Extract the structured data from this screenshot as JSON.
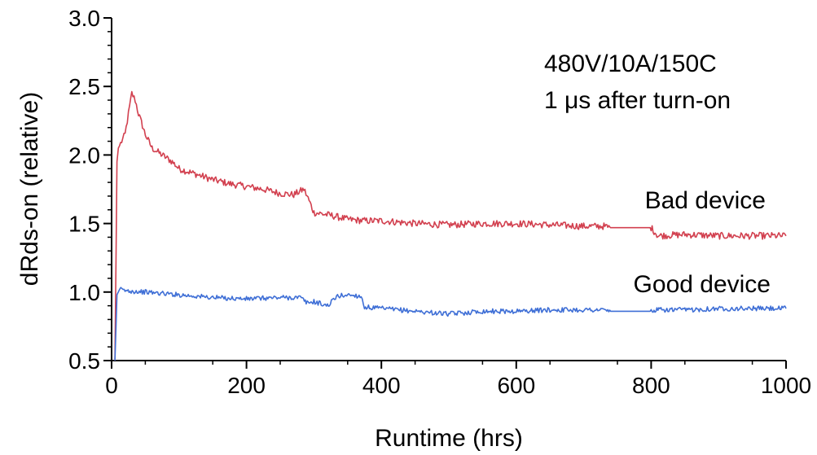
{
  "chart_data": {
    "type": "line",
    "title": "",
    "xlabel": "Runtime (hrs)",
    "ylabel": "dRds-on (relative)",
    "xlim": [
      0,
      1000
    ],
    "ylim": [
      0.5,
      3.0
    ],
    "x_ticks": [
      0,
      200,
      400,
      600,
      800,
      1000
    ],
    "x_tick_labels": [
      "0",
      "200",
      "400",
      "600",
      "800",
      "1000"
    ],
    "y_ticks": [
      0.5,
      1.0,
      1.5,
      2.0,
      2.5,
      3.0
    ],
    "y_tick_labels": [
      "0.5",
      "1.0",
      "1.5",
      "2.0",
      "2.5",
      "3.0"
    ],
    "grid": false,
    "annotations": {
      "conditions_line1": "480V/10A/150C",
      "conditions_line2": "1 μs after turn-on"
    },
    "series": [
      {
        "name": "Bad device",
        "color": "#d2404f",
        "points": [
          [
            5,
            0.5
          ],
          [
            8,
            1.95
          ],
          [
            10,
            2.05
          ],
          [
            15,
            2.1
          ],
          [
            20,
            2.15
          ],
          [
            25,
            2.3
          ],
          [
            30,
            2.45
          ],
          [
            35,
            2.4
          ],
          [
            40,
            2.3
          ],
          [
            50,
            2.15
          ],
          [
            60,
            2.05
          ],
          [
            75,
            2.0
          ],
          [
            90,
            1.95
          ],
          [
            100,
            1.9
          ],
          [
            125,
            1.86
          ],
          [
            150,
            1.82
          ],
          [
            175,
            1.79
          ],
          [
            200,
            1.77
          ],
          [
            225,
            1.75
          ],
          [
            250,
            1.72
          ],
          [
            270,
            1.71
          ],
          [
            285,
            1.75
          ],
          [
            290,
            1.7
          ],
          [
            300,
            1.58
          ],
          [
            325,
            1.56
          ],
          [
            350,
            1.53
          ],
          [
            375,
            1.52
          ],
          [
            400,
            1.52
          ],
          [
            450,
            1.5
          ],
          [
            500,
            1.49
          ],
          [
            550,
            1.5
          ],
          [
            600,
            1.5
          ],
          [
            650,
            1.49
          ],
          [
            700,
            1.48
          ],
          [
            730,
            1.48
          ],
          [
            740,
            1.47
          ],
          [
            800,
            1.47
          ],
          [
            810,
            1.41
          ],
          [
            850,
            1.42
          ],
          [
            900,
            1.41
          ],
          [
            950,
            1.41
          ],
          [
            1000,
            1.41
          ]
        ]
      },
      {
        "name": "Good device",
        "color": "#3f6fd6",
        "points": [
          [
            5,
            0.5
          ],
          [
            8,
            0.98
          ],
          [
            12,
            1.02
          ],
          [
            20,
            1.01
          ],
          [
            50,
            1.0
          ],
          [
            100,
            0.98
          ],
          [
            150,
            0.96
          ],
          [
            200,
            0.95
          ],
          [
            250,
            0.96
          ],
          [
            280,
            0.96
          ],
          [
            290,
            0.92
          ],
          [
            300,
            0.93
          ],
          [
            320,
            0.9
          ],
          [
            335,
            0.97
          ],
          [
            350,
            0.98
          ],
          [
            370,
            0.97
          ],
          [
            375,
            0.89
          ],
          [
            400,
            0.88
          ],
          [
            450,
            0.86
          ],
          [
            500,
            0.84
          ],
          [
            550,
            0.86
          ],
          [
            600,
            0.86
          ],
          [
            650,
            0.87
          ],
          [
            700,
            0.87
          ],
          [
            730,
            0.87
          ],
          [
            740,
            0.86
          ],
          [
            800,
            0.86
          ],
          [
            810,
            0.87
          ],
          [
            850,
            0.87
          ],
          [
            900,
            0.88
          ],
          [
            950,
            0.88
          ],
          [
            1000,
            0.88
          ]
        ]
      }
    ]
  }
}
